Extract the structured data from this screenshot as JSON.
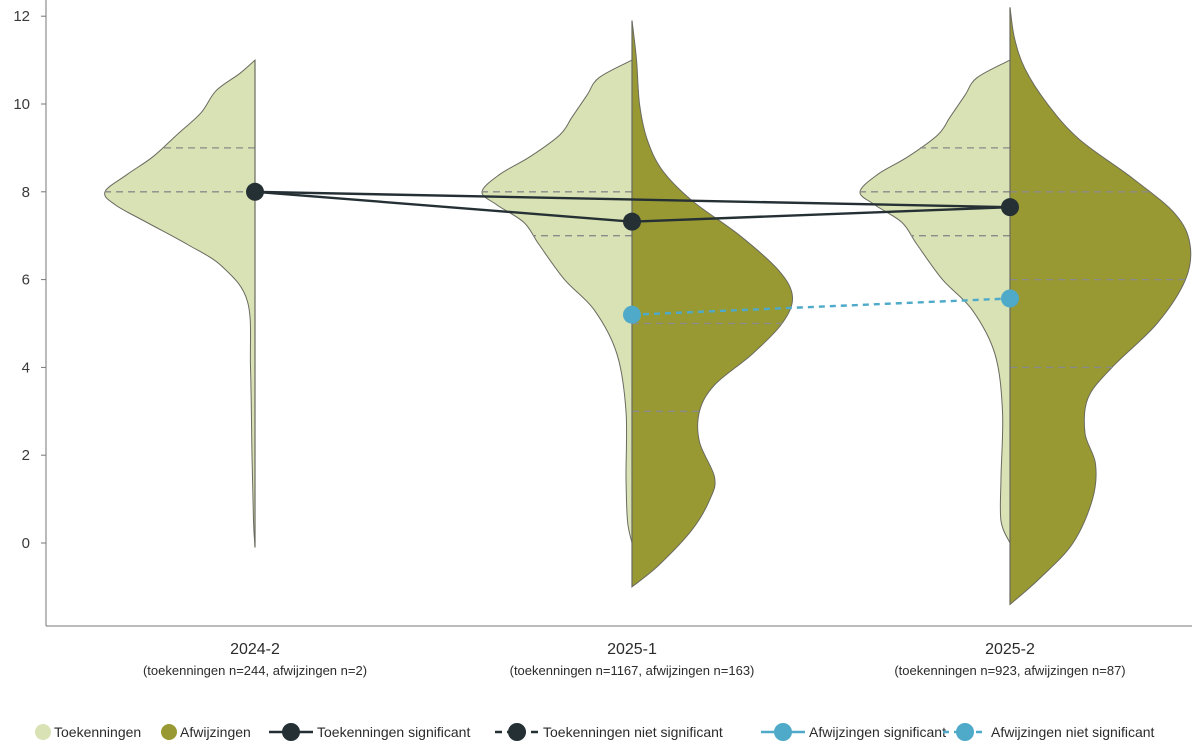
{
  "colors": {
    "toekenningen": "#d8e2b4",
    "afwijzingen": "#999933",
    "dark": "#253035",
    "blue": "#4eaac8",
    "axis": "#777777",
    "quartile": "#8a8a8a"
  },
  "chart_data": {
    "type": "split-violin",
    "title": "",
    "xlabel": "",
    "ylabel": "",
    "ylim": [
      -1.5,
      12
    ],
    "yticks": [
      "0",
      "2",
      "4",
      "6",
      "8",
      "10",
      "12"
    ],
    "categories": [
      {
        "label": "2024-2",
        "sub": "(toekenningen n=244, afwijzingen n=2)"
      },
      {
        "label": "2025-1",
        "sub": "(toekenningen n=1167, afwijzingen n=163)"
      },
      {
        "label": "2025-2",
        "sub": "(toekenningen n=923, afwijzingen n=87)"
      }
    ],
    "series": [
      {
        "name": "Toekenningen",
        "side": "left",
        "violins": [
          {
            "category": "2024-2",
            "ymin": -0.1,
            "ymax": 11.0,
            "quartiles": [
              8,
              9
            ],
            "density": [
              [
                -0.1,
                0.0
              ],
              [
                0.5,
                0.01
              ],
              [
                2,
                0.02
              ],
              [
                4,
                0.03
              ],
              [
                5.5,
                0.05
              ],
              [
                6.3,
                0.22
              ],
              [
                6.8,
                0.45
              ],
              [
                7.3,
                0.72
              ],
              [
                7.7,
                0.93
              ],
              [
                8.0,
                1.0
              ],
              [
                8.4,
                0.85
              ],
              [
                8.8,
                0.68
              ],
              [
                9.3,
                0.52
              ],
              [
                9.8,
                0.36
              ],
              [
                10.3,
                0.26
              ],
              [
                10.7,
                0.1
              ],
              [
                11.0,
                0.0
              ]
            ]
          },
          {
            "category": "2025-1",
            "ymin": 0.0,
            "ymax": 11.0,
            "quartiles": [
              7,
              8
            ],
            "density": [
              [
                0.0,
                0.0
              ],
              [
                0.5,
                0.03
              ],
              [
                1.5,
                0.04
              ],
              [
                3,
                0.04
              ],
              [
                4.3,
                0.1
              ],
              [
                5.3,
                0.25
              ],
              [
                6.0,
                0.45
              ],
              [
                6.8,
                0.62
              ],
              [
                7.3,
                0.72
              ],
              [
                7.7,
                0.9
              ],
              [
                8.0,
                1.0
              ],
              [
                8.4,
                0.88
              ],
              [
                8.8,
                0.68
              ],
              [
                9.3,
                0.48
              ],
              [
                9.7,
                0.4
              ],
              [
                10.2,
                0.3
              ],
              [
                10.6,
                0.22
              ],
              [
                11.0,
                0.0
              ]
            ]
          },
          {
            "category": "2025-2",
            "ymin": 0.0,
            "ymax": 11.0,
            "quartiles": [
              7,
              8,
              9
            ],
            "density": [
              [
                0.0,
                0.0
              ],
              [
                0.5,
                0.06
              ],
              [
                1.5,
                0.06
              ],
              [
                3,
                0.05
              ],
              [
                4.3,
                0.1
              ],
              [
                5.3,
                0.25
              ],
              [
                6.0,
                0.45
              ],
              [
                6.8,
                0.62
              ],
              [
                7.3,
                0.72
              ],
              [
                7.7,
                0.9
              ],
              [
                8.0,
                1.0
              ],
              [
                8.4,
                0.88
              ],
              [
                8.8,
                0.68
              ],
              [
                9.3,
                0.48
              ],
              [
                9.7,
                0.4
              ],
              [
                10.2,
                0.3
              ],
              [
                10.6,
                0.22
              ],
              [
                11.0,
                0.0
              ]
            ]
          }
        ]
      },
      {
        "name": "Afwijzingen",
        "side": "right",
        "violins": [
          {
            "category": "2025-1",
            "ymin": -1.0,
            "ymax": 11.9,
            "quartiles": [
              3,
              5
            ],
            "density": [
              [
                -1.0,
                0.0
              ],
              [
                -0.5,
                0.18
              ],
              [
                0.3,
                0.4
              ],
              [
                1.0,
                0.52
              ],
              [
                1.5,
                0.55
              ],
              [
                2.3,
                0.45
              ],
              [
                3.0,
                0.45
              ],
              [
                3.6,
                0.55
              ],
              [
                4.3,
                0.8
              ],
              [
                5.0,
                1.0
              ],
              [
                5.6,
                1.07
              ],
              [
                6.2,
                0.98
              ],
              [
                7.0,
                0.72
              ],
              [
                7.8,
                0.4
              ],
              [
                8.5,
                0.2
              ],
              [
                9.2,
                0.1
              ],
              [
                10.0,
                0.05
              ],
              [
                11.0,
                0.03
              ],
              [
                11.9,
                0.0
              ]
            ]
          },
          {
            "category": "2025-2",
            "ymin": -1.4,
            "ymax": 12.2,
            "quartiles": [
              4,
              6,
              8
            ],
            "density": [
              [
                -1.4,
                0.0
              ],
              [
                -0.8,
                0.2
              ],
              [
                0.0,
                0.42
              ],
              [
                1.0,
                0.55
              ],
              [
                1.8,
                0.57
              ],
              [
                2.5,
                0.5
              ],
              [
                3.3,
                0.52
              ],
              [
                4.0,
                0.68
              ],
              [
                5.0,
                0.98
              ],
              [
                6.0,
                1.17
              ],
              [
                6.8,
                1.2
              ],
              [
                7.5,
                1.1
              ],
              [
                8.3,
                0.82
              ],
              [
                9.2,
                0.46
              ],
              [
                10.0,
                0.25
              ],
              [
                10.8,
                0.1
              ],
              [
                11.5,
                0.03
              ],
              [
                12.2,
                0.0
              ]
            ]
          }
        ]
      },
      {
        "name": "Toekenningen significant",
        "style": "dark-solid",
        "points": [
          {
            "category": "2024-2",
            "y": 8.0
          },
          {
            "category": "2025-1",
            "y": 7.32
          },
          {
            "category": "2025-2",
            "y": 7.65
          }
        ],
        "segments": [
          [
            "2024-2",
            "2025-1"
          ],
          [
            "2025-1",
            "2025-2"
          ],
          [
            "2024-2",
            "2025-2"
          ]
        ]
      },
      {
        "name": "Toekenningen niet significant",
        "style": "dark-dashed",
        "points": [],
        "segments": []
      },
      {
        "name": "Afwijzingen significant",
        "style": "blue-solid",
        "points": [],
        "segments": []
      },
      {
        "name": "Afwijzingen niet significant",
        "style": "blue-dashed",
        "points": [
          {
            "category": "2025-1",
            "y": 5.2
          },
          {
            "category": "2025-2",
            "y": 5.57
          }
        ],
        "segments": [
          [
            "2025-1",
            "2025-2"
          ]
        ]
      }
    ],
    "legend": {
      "placement": "bottom",
      "items": [
        {
          "label": "Toekenningen",
          "kind": "fill-toe"
        },
        {
          "label": "Afwijzingen",
          "kind": "fill-afw"
        },
        {
          "label": "Toekenningen significant",
          "kind": "dark-solid"
        },
        {
          "label": "Toekenningen niet significant",
          "kind": "dark-dashed"
        },
        {
          "label": "Afwijzingen significant",
          "kind": "blue-solid"
        },
        {
          "label": "Afwijzingen niet significant",
          "kind": "blue-dashed"
        }
      ]
    }
  }
}
